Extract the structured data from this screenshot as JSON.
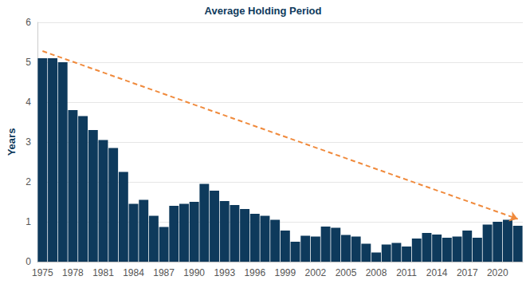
{
  "chart_data": {
    "type": "bar",
    "title": "Average Holding Period",
    "y_label": "Years",
    "categories": [
      "1975",
      null,
      null,
      "1978",
      null,
      null,
      "1981",
      null,
      null,
      "1984",
      null,
      null,
      "1987",
      null,
      null,
      "1990",
      null,
      null,
      "1993",
      null,
      null,
      "1996",
      null,
      null,
      "1999",
      null,
      null,
      "2002",
      null,
      null,
      "2005",
      null,
      null,
      "2008",
      null,
      null,
      "2011",
      null,
      null,
      "2014",
      null,
      null,
      "2017",
      null,
      null,
      "2020",
      null,
      null
    ],
    "series": [
      {
        "type": "bar",
        "color": "#0e3a5c",
        "values": [
          5.1,
          5.1,
          5.0,
          3.8,
          3.65,
          3.3,
          3.05,
          2.85,
          2.25,
          1.45,
          1.55,
          1.15,
          0.87,
          1.4,
          1.45,
          1.5,
          1.95,
          1.78,
          1.52,
          1.42,
          1.32,
          1.2,
          1.15,
          1.05,
          0.78,
          0.5,
          0.65,
          0.63,
          0.88,
          0.85,
          0.67,
          0.63,
          0.45,
          0.23,
          0.43,
          0.47,
          0.38,
          0.58,
          0.72,
          0.68,
          0.6,
          0.63,
          0.78,
          0.6,
          0.93,
          1.0,
          1.05,
          0.9
        ]
      },
      {
        "type": "line",
        "color": "#f08a3c",
        "line_style": "dashed",
        "marker": "arrow",
        "values": [
          5.28,
          null,
          null,
          null,
          null,
          null,
          null,
          null,
          null,
          null,
          null,
          null,
          null,
          null,
          null,
          null,
          null,
          null,
          null,
          null,
          null,
          null,
          null,
          null,
          null,
          null,
          null,
          null,
          null,
          null,
          null,
          null,
          null,
          null,
          null,
          null,
          null,
          null,
          null,
          null,
          null,
          null,
          null,
          null,
          null,
          null,
          null,
          1.07
        ]
      }
    ],
    "ylim": [
      0,
      6
    ],
    "yticks": [
      0,
      1,
      2,
      3,
      4,
      5,
      6
    ],
    "grid": true
  }
}
